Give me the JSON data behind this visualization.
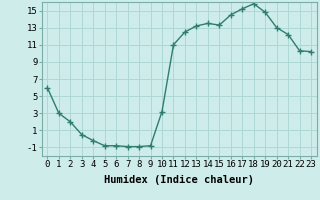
{
  "x": [
    0,
    1,
    2,
    3,
    4,
    5,
    6,
    7,
    8,
    9,
    10,
    11,
    12,
    13,
    14,
    15,
    16,
    17,
    18,
    19,
    20,
    21,
    22,
    23
  ],
  "y": [
    6,
    3,
    2,
    0.5,
    -0.2,
    -0.8,
    -0.8,
    -0.9,
    -0.9,
    -0.8,
    3.2,
    11,
    12.5,
    13.2,
    13.5,
    13.3,
    14.5,
    15.2,
    15.8,
    14.8,
    13.0,
    12.2,
    10.3,
    10.2
  ],
  "line_color": "#2e7d70",
  "marker": "+",
  "markersize": 4,
  "markeredgewidth": 1.0,
  "linewidth": 1.0,
  "background_color": "#ceecea",
  "grid_color": "#aed8d4",
  "xlabel": "Humidex (Indice chaleur)",
  "ylim": [
    -2,
    16
  ],
  "yticks": [
    -1,
    1,
    3,
    5,
    7,
    9,
    11,
    13,
    15
  ],
  "xticks": [
    0,
    1,
    2,
    3,
    4,
    5,
    6,
    7,
    8,
    9,
    10,
    11,
    12,
    13,
    14,
    15,
    16,
    17,
    18,
    19,
    20,
    21,
    22,
    23
  ],
  "tick_label_fontsize": 6.5,
  "xlabel_fontsize": 7.5,
  "xlim": [
    -0.5,
    23.5
  ]
}
